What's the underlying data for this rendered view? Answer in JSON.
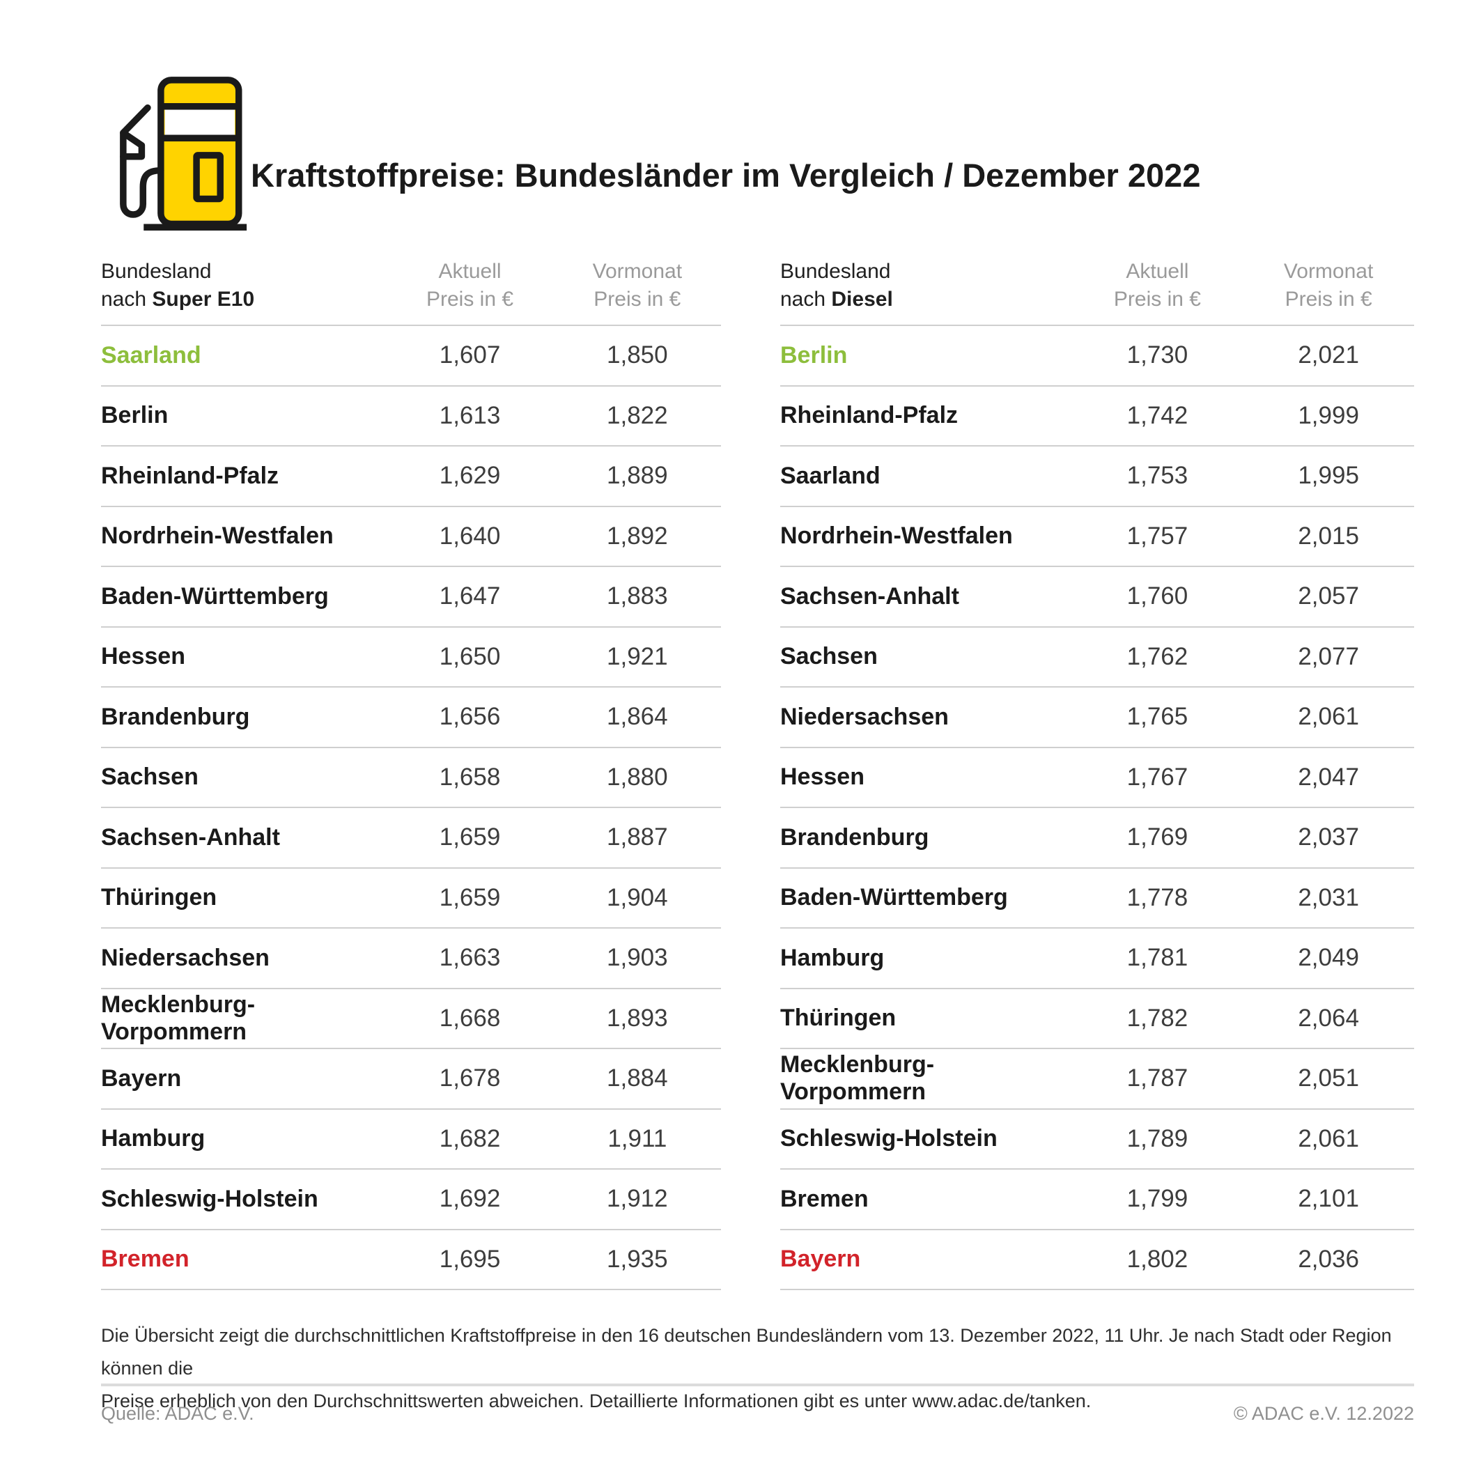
{
  "header": {
    "title": "Kraftstoffpreise: Bundesländer im Vergleich / Dezember 2022",
    "icon": "fuel-pump-icon"
  },
  "colors": {
    "green": "#8DBE3C",
    "red": "#D2232A",
    "yellow": "#FFD300",
    "black": "#1a1a1a",
    "line_gray": "#cfcfcf",
    "header_gray": "#9a9a9a"
  },
  "columns": {
    "col1_line1": "Bundesland",
    "col1_line2_prefix": "nach ",
    "aktuell": "Aktuell",
    "vormonat": "Vormonat",
    "preis": "Preis in €"
  },
  "tables": [
    {
      "fuel": "Super E10",
      "rows": [
        {
          "name": "Saarland",
          "aktuell": "1,607",
          "vormonat": "1,850",
          "highlight": "green"
        },
        {
          "name": "Berlin",
          "aktuell": "1,613",
          "vormonat": "1,822"
        },
        {
          "name": "Rheinland-Pfalz",
          "aktuell": "1,629",
          "vormonat": "1,889"
        },
        {
          "name": "Nordrhein-Westfalen",
          "aktuell": "1,640",
          "vormonat": "1,892"
        },
        {
          "name": "Baden-Württemberg",
          "aktuell": "1,647",
          "vormonat": "1,883"
        },
        {
          "name": "Hessen",
          "aktuell": "1,650",
          "vormonat": "1,921"
        },
        {
          "name": "Brandenburg",
          "aktuell": "1,656",
          "vormonat": "1,864"
        },
        {
          "name": "Sachsen",
          "aktuell": "1,658",
          "vormonat": "1,880"
        },
        {
          "name": "Sachsen-Anhalt",
          "aktuell": "1,659",
          "vormonat": "1,887"
        },
        {
          "name": "Thüringen",
          "aktuell": "1,659",
          "vormonat": "1,904"
        },
        {
          "name": "Niedersachsen",
          "aktuell": "1,663",
          "vormonat": "1,903"
        },
        {
          "name": "Mecklenburg-Vorpommern",
          "aktuell": "1,668",
          "vormonat": "1,893"
        },
        {
          "name": "Bayern",
          "aktuell": "1,678",
          "vormonat": "1,884"
        },
        {
          "name": "Hamburg",
          "aktuell": "1,682",
          "vormonat": "1,911"
        },
        {
          "name": "Schleswig-Holstein",
          "aktuell": "1,692",
          "vormonat": "1,912"
        },
        {
          "name": "Bremen",
          "aktuell": "1,695",
          "vormonat": "1,935",
          "highlight": "red"
        }
      ]
    },
    {
      "fuel": "Diesel",
      "rows": [
        {
          "name": "Berlin",
          "aktuell": "1,730",
          "vormonat": "2,021",
          "highlight": "green"
        },
        {
          "name": "Rheinland-Pfalz",
          "aktuell": "1,742",
          "vormonat": "1,999"
        },
        {
          "name": "Saarland",
          "aktuell": "1,753",
          "vormonat": "1,995"
        },
        {
          "name": "Nordrhein-Westfalen",
          "aktuell": "1,757",
          "vormonat": "2,015"
        },
        {
          "name": "Sachsen-Anhalt",
          "aktuell": "1,760",
          "vormonat": "2,057"
        },
        {
          "name": "Sachsen",
          "aktuell": "1,762",
          "vormonat": "2,077"
        },
        {
          "name": "Niedersachsen",
          "aktuell": "1,765",
          "vormonat": "2,061"
        },
        {
          "name": "Hessen",
          "aktuell": "1,767",
          "vormonat": "2,047"
        },
        {
          "name": "Brandenburg",
          "aktuell": "1,769",
          "vormonat": "2,037"
        },
        {
          "name": "Baden-Württemberg",
          "aktuell": "1,778",
          "vormonat": "2,031"
        },
        {
          "name": "Hamburg",
          "aktuell": "1,781",
          "vormonat": "2,049"
        },
        {
          "name": "Thüringen",
          "aktuell": "1,782",
          "vormonat": "2,064"
        },
        {
          "name": "Mecklenburg-Vorpommern",
          "aktuell": "1,787",
          "vormonat": "2,051"
        },
        {
          "name": "Schleswig-Holstein",
          "aktuell": "1,789",
          "vormonat": "2,061"
        },
        {
          "name": "Bremen",
          "aktuell": "1,799",
          "vormonat": "2,101"
        },
        {
          "name": "Bayern",
          "aktuell": "1,802",
          "vormonat": "2,036",
          "highlight": "red"
        }
      ]
    }
  ],
  "footnote_line1": "Die Übersicht zeigt die durchschnittlichen Kraftstoffpreise in den 16 deutschen Bundesländern vom 13. Dezember 2022, 11 Uhr. Je nach Stadt oder Region können die",
  "footnote_line2": "Preise erheblich von den Durchschnittswerten abweichen. Detaillierte Informationen gibt es unter www.adac.de/tanken.",
  "source_left": "Quelle: ADAC e.V.",
  "source_right": "© ADAC e.V. 12.2022",
  "chart_data": [
    {
      "type": "table",
      "title": "Bundesland nach Super E10",
      "columns": [
        "Bundesland",
        "Aktuell Preis in €",
        "Vormonat Preis in €"
      ],
      "rows": [
        [
          "Saarland",
          1.607,
          1.85
        ],
        [
          "Berlin",
          1.613,
          1.822
        ],
        [
          "Rheinland-Pfalz",
          1.629,
          1.889
        ],
        [
          "Nordrhein-Westfalen",
          1.64,
          1.892
        ],
        [
          "Baden-Württemberg",
          1.647,
          1.883
        ],
        [
          "Hessen",
          1.65,
          1.921
        ],
        [
          "Brandenburg",
          1.656,
          1.864
        ],
        [
          "Sachsen",
          1.658,
          1.88
        ],
        [
          "Sachsen-Anhalt",
          1.659,
          1.887
        ],
        [
          "Thüringen",
          1.659,
          1.904
        ],
        [
          "Niedersachsen",
          1.663,
          1.903
        ],
        [
          "Mecklenburg-Vorpommern",
          1.668,
          1.893
        ],
        [
          "Bayern",
          1.678,
          1.884
        ],
        [
          "Hamburg",
          1.682,
          1.911
        ],
        [
          "Schleswig-Holstein",
          1.692,
          1.912
        ],
        [
          "Bremen",
          1.695,
          1.935
        ]
      ]
    },
    {
      "type": "table",
      "title": "Bundesland nach Diesel",
      "columns": [
        "Bundesland",
        "Aktuell Preis in €",
        "Vormonat Preis in €"
      ],
      "rows": [
        [
          "Berlin",
          1.73,
          2.021
        ],
        [
          "Rheinland-Pfalz",
          1.742,
          1.999
        ],
        [
          "Saarland",
          1.753,
          1.995
        ],
        [
          "Nordrhein-Westfalen",
          1.757,
          2.015
        ],
        [
          "Sachsen-Anhalt",
          1.76,
          2.057
        ],
        [
          "Sachsen",
          1.762,
          2.077
        ],
        [
          "Niedersachsen",
          1.765,
          2.061
        ],
        [
          "Hessen",
          1.767,
          2.047
        ],
        [
          "Brandenburg",
          1.769,
          2.037
        ],
        [
          "Baden-Württemberg",
          1.778,
          2.031
        ],
        [
          "Hamburg",
          1.781,
          2.049
        ],
        [
          "Thüringen",
          1.782,
          2.064
        ],
        [
          "Mecklenburg-Vorpommern",
          1.787,
          2.051
        ],
        [
          "Schleswig-Holstein",
          1.789,
          2.061
        ],
        [
          "Bremen",
          1.799,
          2.101
        ],
        [
          "Bayern",
          1.802,
          2.036
        ]
      ]
    }
  ]
}
